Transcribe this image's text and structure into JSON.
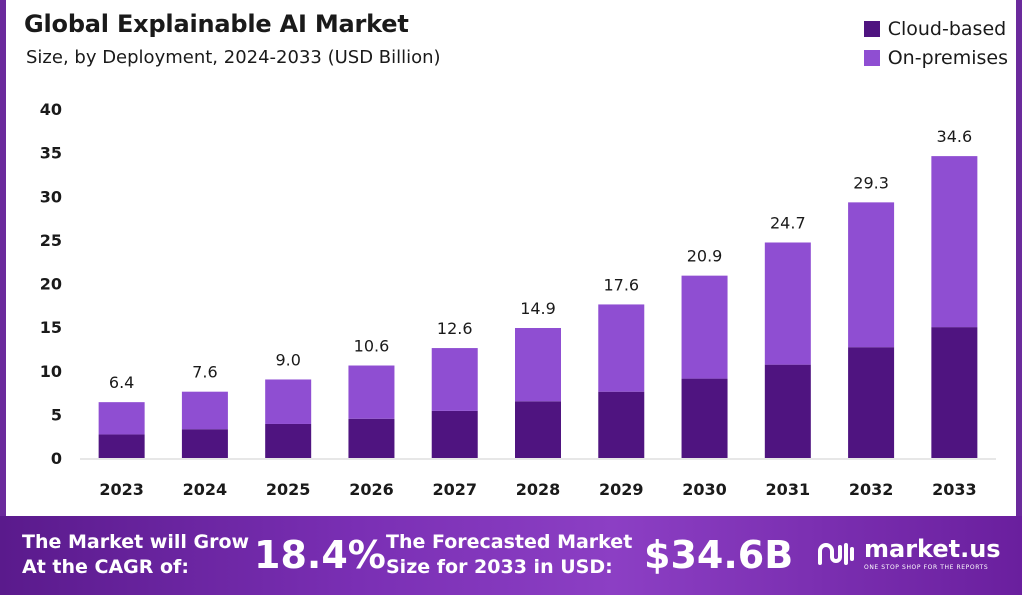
{
  "chart_data": {
    "type": "bar",
    "stacked": true,
    "title": "Global Explainable AI Market",
    "subtitle": "Size, by Deployment, 2024-2033 (USD Billion)",
    "categories": [
      "2023",
      "2024",
      "2025",
      "2026",
      "2027",
      "2028",
      "2029",
      "2030",
      "2031",
      "2032",
      "2033"
    ],
    "series": [
      {
        "name": "Cloud-based",
        "values": [
          2.7,
          3.3,
          3.9,
          4.5,
          5.4,
          6.5,
          7.6,
          9.1,
          10.7,
          12.7,
          15.0
        ],
        "color": "#4f1480"
      },
      {
        "name": "On-premises",
        "values": [
          3.7,
          4.3,
          5.1,
          6.1,
          7.2,
          8.4,
          10.0,
          11.8,
          14.0,
          16.6,
          19.6
        ],
        "color": "#8f4ed2"
      }
    ],
    "totals": [
      "6.4",
      "7.6",
      "9.0",
      "10.6",
      "12.6",
      "14.9",
      "17.6",
      "20.9",
      "24.7",
      "29.3",
      "34.6"
    ],
    "yticks": [
      "0",
      "5",
      "10",
      "15",
      "20",
      "25",
      "30",
      "35",
      "40"
    ],
    "ylim": [
      0,
      40
    ],
    "grid": false,
    "legend_position": "top-right"
  },
  "banner": {
    "cagr_text_line1": "The Market will Grow",
    "cagr_text_line2": "At the CAGR of:",
    "cagr_value": "18.4%",
    "forecast_text_line1": "The Forecasted Market",
    "forecast_text_line2": "Size for 2033 in USD:",
    "forecast_value": "$34.6B",
    "brand_name": "market.us",
    "brand_tagline": "ONE STOP SHOP FOR THE REPORTS"
  },
  "colors": {
    "frame": "#6b2a9c",
    "cloud": "#4f1480",
    "onprem": "#8f4ed2"
  }
}
